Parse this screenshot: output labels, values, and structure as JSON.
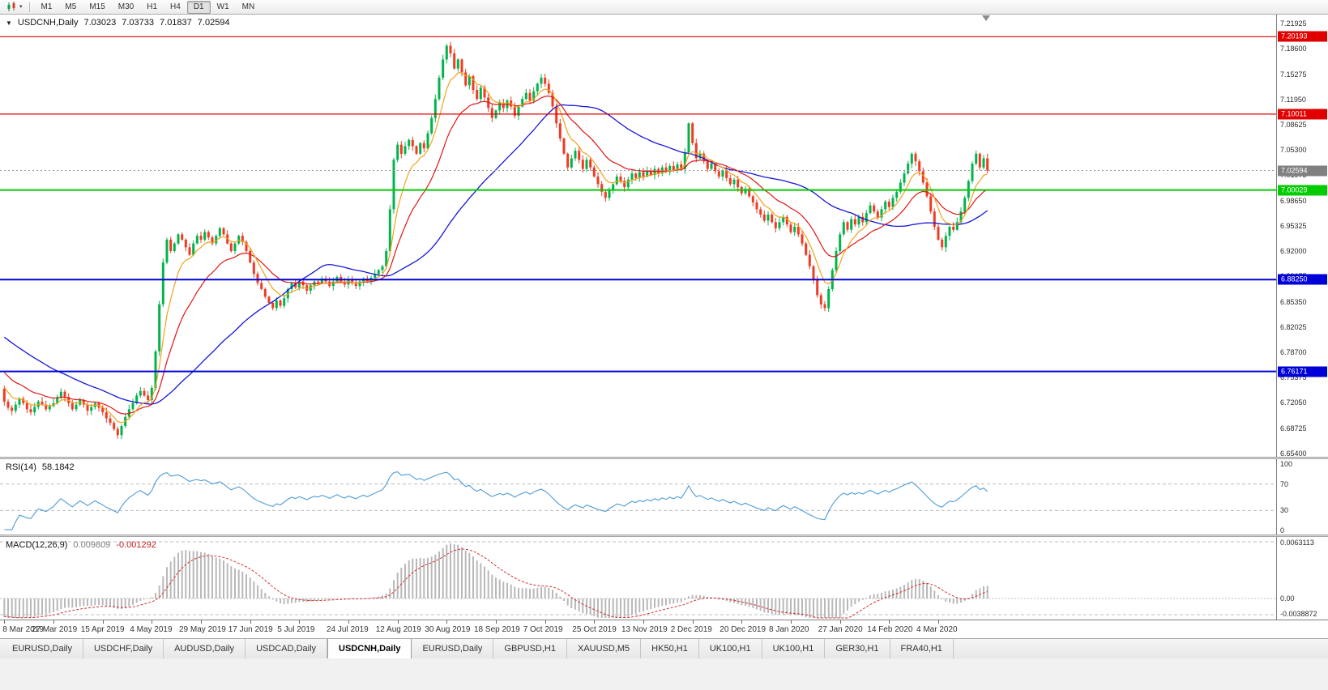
{
  "colors": {
    "candle_up": "#00b44c",
    "candle_down": "#ee3b25",
    "ma_fast": "#f2a21c",
    "ma_mid": "#e01616",
    "ma_slow": "#1717d8",
    "resistance": "#e00000",
    "round_level": "#00cc00",
    "support": "#0000d8",
    "rsi_line": "#4f9bd8",
    "macd_hist": "#b8b8b8",
    "macd_signal": "#d03030",
    "current_price_bg": "#808080"
  },
  "toolbar": {
    "periods": [
      "M1",
      "M5",
      "M15",
      "M30",
      "H1",
      "H4",
      "D1",
      "W1",
      "MN"
    ],
    "active_period": "D1"
  },
  "chart": {
    "symbol_timeframe": "USDCNH,Daily",
    "open": "7.03023",
    "high": "7.03733",
    "low": "7.01837",
    "close": "7.02594"
  },
  "rsi": {
    "label": "RSI(14)",
    "value": "58.1842",
    "ticks": [
      "100",
      "70",
      "30",
      "0"
    ]
  },
  "macd": {
    "label": "MACD(12,26,9)",
    "main_value": "0.009809",
    "signal_value": "-0.001292",
    "ticks": [
      "0.0063113",
      "0.00",
      "-0.0038872"
    ]
  },
  "tabs": {
    "items": [
      "EURUSD,Daily",
      "USDCHF,Daily",
      "AUDUSD,Daily",
      "USDCAD,Daily",
      "USDCNH,Daily",
      "EURUSD,Daily",
      "GBPUSD,H1",
      "XAUUSD,M5",
      "HK50,H1",
      "UK100,H1",
      "UK100,H1",
      "GER30,H1",
      "FRA40,H1"
    ],
    "active_index": 4
  },
  "chart_data": {
    "type": "candlestick",
    "symbol": "USDCNH",
    "timeframe": "Daily",
    "bars_per_label": 13,
    "x_axis_labels": [
      "8 Mar 2019",
      "27 Mar 2019",
      "15 Apr 2019",
      "4 May 2019",
      "29 May 2019",
      "17 Jun 2019",
      "5 Jul 2019",
      "24 Jul 2019",
      "12 Aug 2019",
      "30 Aug 2019",
      "18 Sep 2019",
      "7 Oct 2019",
      "25 Oct 2019",
      "13 Nov 2019",
      "2 Dec 2019",
      "20 Dec 2019",
      "8 Jan 2020",
      "27 Jan 2020",
      "14 Feb 2020",
      "4 Mar 2020"
    ],
    "price_axis": {
      "min": 6.6495,
      "max": 7.231,
      "tick_labels": [
        "7.21925",
        "7.18600",
        "7.15275",
        "7.11950",
        "7.08625",
        "7.05300",
        "7.01975",
        "6.98650",
        "6.95325",
        "6.92000",
        "6.88675",
        "6.85350",
        "6.82025",
        "6.78700",
        "6.75375",
        "6.72050",
        "6.68725",
        "6.65400"
      ]
    },
    "levels": [
      {
        "name": "resistance-line-upper",
        "label": "7.20193",
        "price": 7.20193,
        "color": "#e00000",
        "width": 1.2
      },
      {
        "name": "resistance-line-mid",
        "label": "7.10011",
        "price": 7.10011,
        "color": "#e00000",
        "width": 1.2
      },
      {
        "name": "round-number-line",
        "label": "7.00029",
        "price": 7.00029,
        "color": "#00cc00",
        "width": 2
      },
      {
        "name": "support-line-upper",
        "label": "6.88250",
        "price": 6.8825,
        "color": "#0000d8",
        "width": 2
      },
      {
        "name": "support-line-lower",
        "label": "6.76171",
        "price": 6.76171,
        "color": "#0000d8",
        "width": 2
      }
    ],
    "current_price": 7.02594,
    "current_price_label": "7.02594",
    "moving_averages": [
      {
        "name": "fast",
        "period": 7,
        "color": "#f2a21c"
      },
      {
        "name": "mid",
        "period": 18,
        "color": "#e01616"
      },
      {
        "name": "slow",
        "period": 45,
        "color": "#1717d8"
      }
    ],
    "indicators": {
      "rsi": {
        "period": 14,
        "current": "58.1842"
      },
      "macd": {
        "params": "12,26,9",
        "main": "0.009809",
        "signal": "-0.001292"
      }
    },
    "closes": [
      6.722,
      6.714,
      6.71,
      6.718,
      6.726,
      6.72,
      6.712,
      6.708,
      6.715,
      6.722,
      6.718,
      6.712,
      6.716,
      6.72,
      6.728,
      6.735,
      6.728,
      6.72,
      6.712,
      6.718,
      6.724,
      6.718,
      6.71,
      6.715,
      6.72,
      6.714,
      6.708,
      6.7,
      6.694,
      6.686,
      6.678,
      6.69,
      6.702,
      6.712,
      6.72,
      6.73,
      6.736,
      6.73,
      6.724,
      6.74,
      6.788,
      6.85,
      6.905,
      6.935,
      6.92,
      6.93,
      6.942,
      6.935,
      6.925,
      6.915,
      6.93,
      6.94,
      6.935,
      6.945,
      6.938,
      6.93,
      6.94,
      6.95,
      6.942,
      6.93,
      6.92,
      6.93,
      6.94,
      6.932,
      6.92,
      6.905,
      6.89,
      6.878,
      6.87,
      6.86,
      6.852,
      6.845,
      6.855,
      6.848,
      6.858,
      6.87,
      6.878,
      6.872,
      6.88,
      6.875,
      6.868,
      6.875,
      6.88,
      6.878,
      6.884,
      6.88,
      6.874,
      6.88,
      6.886,
      6.88,
      6.876,
      6.882,
      6.878,
      6.874,
      6.88,
      6.884,
      6.88,
      6.885,
      6.89,
      6.895,
      6.9,
      6.92,
      6.975,
      7.04,
      7.06,
      7.048,
      7.058,
      7.066,
      7.058,
      7.048,
      7.062,
      7.055,
      7.075,
      7.095,
      7.12,
      7.148,
      7.172,
      7.19,
      7.18,
      7.16,
      7.172,
      7.155,
      7.138,
      7.15,
      7.132,
      7.12,
      7.135,
      7.122,
      7.108,
      7.095,
      7.105,
      7.115,
      7.108,
      7.118,
      7.11,
      7.098,
      7.11,
      7.12,
      7.128,
      7.118,
      7.13,
      7.14,
      7.148,
      7.14,
      7.128,
      7.11,
      7.088,
      7.068,
      7.048,
      7.03,
      7.042,
      7.052,
      7.04,
      7.028,
      7.04,
      7.03,
      7.018,
      7.008,
      6.998,
      6.99,
      7.0,
      7.008,
      7.018,
      7.012,
      7.004,
      7.014,
      7.022,
      7.016,
      7.024,
      7.018,
      7.026,
      7.02,
      7.028,
      7.022,
      7.03,
      7.024,
      7.032,
      7.026,
      7.034,
      7.028,
      7.05,
      7.088,
      7.062,
      7.042,
      7.048,
      7.038,
      7.028,
      7.035,
      7.025,
      7.018,
      7.026,
      7.016,
      7.008,
      7.014,
      7.004,
      6.996,
      7.002,
      6.992,
      6.984,
      6.975,
      6.968,
      6.96,
      6.968,
      6.958,
      6.95,
      6.958,
      6.965,
      6.955,
      6.945,
      6.952,
      6.942,
      6.93,
      6.915,
      6.9,
      6.882,
      6.862,
      6.85,
      6.845,
      6.87,
      6.895,
      6.92,
      6.942,
      6.958,
      6.948,
      6.962,
      6.955,
      6.965,
      6.958,
      6.97,
      6.98,
      6.972,
      6.964,
      6.975,
      6.985,
      6.978,
      6.99,
      6.998,
      7.01,
      7.022,
      7.035,
      7.048,
      7.038,
      7.025,
      7.01,
      6.992,
      6.972,
      6.952,
      6.935,
      6.925,
      6.94,
      6.952,
      6.948,
      6.958,
      6.972,
      6.99,
      7.012,
      7.035,
      7.048,
      7.03,
      7.042,
      7.026
    ]
  }
}
